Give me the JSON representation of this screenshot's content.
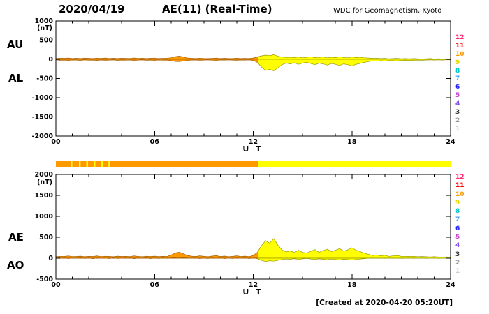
{
  "header": {
    "date": "2020/04/19",
    "title": "AE(11) (Real-Time)",
    "source": "WDC for Geomagnetism, Kyoto"
  },
  "footer": {
    "created": "[Created at 2020-04-20 05:20UT]"
  },
  "station_numbers": [
    {
      "label": "12",
      "color": "#ff2d78"
    },
    {
      "label": "11",
      "color": "#ff0000"
    },
    {
      "label": "10",
      "color": "#ff9900"
    },
    {
      "label": "9",
      "color": "#e8d800"
    },
    {
      "label": "8",
      "color": "#00c8c8"
    },
    {
      "label": "7",
      "color": "#44a0ff"
    },
    {
      "label": "6",
      "color": "#2222ff"
    },
    {
      "label": "5",
      "color": "#cc44cc"
    },
    {
      "label": "4",
      "color": "#7744ee"
    },
    {
      "label": "3",
      "color": "#333333"
    },
    {
      "label": "2",
      "color": "#999999"
    },
    {
      "label": "1",
      "color": "#cccccc"
    }
  ],
  "trace": {
    "early_color": "#ff9900",
    "late_color": "#ffff00",
    "early_stroke": "#a65c00",
    "late_stroke": "#9a9a00",
    "change_hour": 12.3
  },
  "colorbar": {
    "segments": [
      {
        "from": 0,
        "to": 0.9,
        "color": "#ff9900"
      },
      {
        "from": 0.9,
        "to": 1.0,
        "color": "#ffff00"
      },
      {
        "from": 1.0,
        "to": 1.4,
        "color": "#ff9900"
      },
      {
        "from": 1.4,
        "to": 1.5,
        "color": "#ffff00"
      },
      {
        "from": 1.5,
        "to": 1.85,
        "color": "#ff9900"
      },
      {
        "from": 1.85,
        "to": 1.95,
        "color": "#ffff00"
      },
      {
        "from": 1.95,
        "to": 2.3,
        "color": "#ff9900"
      },
      {
        "from": 2.3,
        "to": 2.4,
        "color": "#ffff00"
      },
      {
        "from": 2.4,
        "to": 2.75,
        "color": "#ff9900"
      },
      {
        "from": 2.75,
        "to": 2.85,
        "color": "#ffff00"
      },
      {
        "from": 2.85,
        "to": 3.2,
        "color": "#ff9900"
      },
      {
        "from": 3.2,
        "to": 3.3,
        "color": "#ffff00"
      },
      {
        "from": 3.3,
        "to": 12.3,
        "color": "#ff9900"
      },
      {
        "from": 12.3,
        "to": 24,
        "color": "#ffff00"
      }
    ]
  },
  "chart_data": [
    {
      "type": "area",
      "name": "AU-AL-panel",
      "ylabel": "(nT)",
      "xlabel": "U T",
      "ylim": [
        -2000,
        1000
      ],
      "yticks": [
        1000,
        500,
        0,
        -500,
        -1000,
        -1500,
        -2000
      ],
      "xticks": [
        {
          "hour": 0,
          "label": "00"
        },
        {
          "hour": 6,
          "label": "06"
        },
        {
          "hour": 12,
          "label": "12"
        },
        {
          "hour": 18,
          "label": "18"
        },
        {
          "hour": 24,
          "label": "24"
        }
      ],
      "x_step_hours": 0.25,
      "left_labels": [
        "AU",
        "AL"
      ],
      "series": [
        {
          "name": "AU",
          "values": [
            20,
            30,
            25,
            35,
            20,
            28,
            22,
            32,
            26,
            20,
            30,
            24,
            34,
            22,
            28,
            20,
            30,
            26,
            22,
            34,
            24,
            30,
            20,
            28,
            32,
            22,
            26,
            30,
            40,
            70,
            85,
            60,
            35,
            28,
            22,
            30,
            24,
            20,
            26,
            32,
            22,
            28,
            20,
            24,
            30,
            22,
            26,
            20,
            35,
            60,
            90,
            110,
            95,
            120,
            80,
            60,
            50,
            55,
            45,
            60,
            40,
            55,
            65,
            45,
            50,
            60,
            40,
            55,
            45,
            65,
            50,
            40,
            60,
            45,
            55,
            40,
            35,
            25,
            30,
            20,
            25,
            15,
            20,
            25,
            15,
            20,
            15,
            20,
            15,
            10,
            15,
            20,
            10,
            15,
            10,
            15,
            10
          ]
        },
        {
          "name": "AL",
          "values": [
            -15,
            -25,
            -20,
            -30,
            -18,
            -22,
            -28,
            -16,
            -24,
            -20,
            -30,
            -18,
            -26,
            -22,
            -16,
            -28,
            -20,
            -24,
            -18,
            -30,
            -22,
            -16,
            -26,
            -20,
            -28,
            -18,
            -24,
            -20,
            -35,
            -55,
            -60,
            -45,
            -30,
            -22,
            -18,
            -26,
            -20,
            -16,
            -24,
            -28,
            -18,
            -22,
            -16,
            -20,
            -26,
            -18,
            -22,
            -16,
            -30,
            -80,
            -200,
            -290,
            -260,
            -300,
            -220,
            -140,
            -100,
            -120,
            -90,
            -130,
            -100,
            -80,
            -110,
            -140,
            -100,
            -120,
            -150,
            -110,
            -130,
            -160,
            -120,
            -140,
            -170,
            -130,
            -110,
            -80,
            -60,
            -40,
            -50,
            -35,
            -45,
            -30,
            -35,
            -40,
            -30,
            -25,
            -30,
            -25,
            -20,
            -25,
            -20,
            -15,
            -20,
            -15,
            -20,
            -15,
            -15
          ]
        }
      ]
    },
    {
      "type": "area",
      "name": "AE-AO-panel",
      "ylabel": "(nT)",
      "xlabel": "U T",
      "ylim": [
        -500,
        2000
      ],
      "yticks": [
        2000,
        1500,
        1000,
        500,
        0,
        -500
      ],
      "xticks": [
        {
          "hour": 0,
          "label": "00"
        },
        {
          "hour": 6,
          "label": "06"
        },
        {
          "hour": 12,
          "label": "12"
        },
        {
          "hour": 18,
          "label": "18"
        },
        {
          "hour": 24,
          "label": "24"
        }
      ],
      "x_step_hours": 0.25,
      "left_labels": [
        "AE",
        "AO"
      ],
      "series": [
        {
          "name": "AE",
          "values": [
            35,
            45,
            40,
            55,
            38,
            42,
            48,
            36,
            44,
            40,
            55,
            38,
            46,
            42,
            36,
            48,
            40,
            44,
            38,
            55,
            42,
            36,
            46,
            40,
            48,
            38,
            44,
            40,
            75,
            125,
            145,
            105,
            65,
            48,
            40,
            56,
            44,
            36,
            50,
            60,
            40,
            50,
            36,
            44,
            56,
            40,
            48,
            36,
            65,
            140,
            300,
            420,
            360,
            470,
            310,
            200,
            150,
            175,
            135,
            190,
            140,
            120,
            165,
            205,
            140,
            180,
            215,
            160,
            190,
            230,
            170,
            200,
            250,
            190,
            160,
            120,
            95,
            65,
            80,
            55,
            70,
            45,
            55,
            65,
            45,
            45,
            40,
            45,
            35,
            40,
            35,
            30,
            35,
            30,
            25,
            30,
            25
          ]
        },
        {
          "name": "AO",
          "values": [
            5,
            -5,
            8,
            -8,
            4,
            -4,
            10,
            -6,
            6,
            -10,
            8,
            -4,
            4,
            -8,
            10,
            -6,
            5,
            -5,
            8,
            -10,
            6,
            -4,
            10,
            -8,
            4,
            -6,
            8,
            -5,
            5,
            15,
            20,
            10,
            5,
            -4,
            6,
            -8,
            4,
            -6,
            8,
            -4,
            6,
            -8,
            4,
            -6,
            8,
            -4,
            6,
            -8,
            5,
            -10,
            -50,
            -80,
            -60,
            -70,
            -50,
            -30,
            -20,
            -25,
            -10,
            -30,
            -15,
            -5,
            -20,
            -30,
            -15,
            -25,
            -35,
            -20,
            -30,
            -40,
            -25,
            -30,
            -45,
            -30,
            -20,
            -10,
            0,
            5,
            -5,
            5,
            -5,
            5,
            -5,
            5,
            -5,
            0,
            5,
            -5,
            0,
            5,
            -5,
            0,
            5,
            -5,
            0,
            5,
            0
          ]
        }
      ]
    }
  ]
}
